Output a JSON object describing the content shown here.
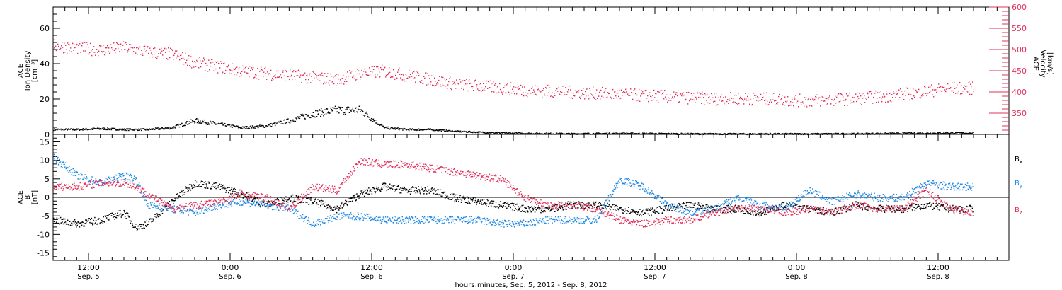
{
  "chart_data": [
    {
      "type": "scatter",
      "panel": "top",
      "ylabel_left": [
        "ACE",
        "Ion Density",
        "[cm⁻³]"
      ],
      "ylabel_right": [
        "ACE",
        "Velocity",
        "[km/s]"
      ],
      "ylim_left": [
        0,
        72
      ],
      "yticks_left": [
        0,
        20,
        40,
        60
      ],
      "ylim_right": [
        300,
        600
      ],
      "yticks_right": [
        350,
        400,
        450,
        500,
        550,
        600
      ],
      "xlim_hours": [
        0,
        81
      ],
      "grid": false,
      "series": [
        {
          "axis": "left",
          "color": "#000000",
          "x": [
            0,
            2,
            4,
            6,
            8,
            10,
            12,
            14,
            16,
            18,
            20,
            22,
            24,
            26,
            28,
            30,
            32,
            34,
            36,
            38,
            40,
            44,
            48,
            52,
            56,
            60,
            64,
            68,
            72,
            76,
            78
          ],
          "values": [
            3,
            3,
            3.5,
            3,
            3,
            4,
            8,
            6,
            4,
            5,
            8,
            12,
            14,
            14,
            4,
            3,
            3,
            2,
            1.5,
            1,
            0.8,
            0.6,
            0.8,
            0.6,
            0.5,
            0.5,
            0.5,
            0.6,
            0.8,
            1,
            1
          ]
        },
        {
          "axis": "right",
          "color": "#e0305a",
          "x": [
            0,
            2,
            4,
            6,
            8,
            10,
            12,
            14,
            16,
            18,
            20,
            22,
            24,
            26,
            28,
            30,
            32,
            34,
            36,
            38,
            40,
            44,
            48,
            52,
            56,
            60,
            64,
            68,
            72,
            76,
            78
          ],
          "values": [
            510,
            505,
            500,
            505,
            495,
            490,
            470,
            460,
            450,
            445,
            440,
            435,
            430,
            445,
            450,
            440,
            430,
            420,
            415,
            410,
            405,
            400,
            395,
            390,
            385,
            385,
            380,
            385,
            395,
            410,
            410
          ]
        }
      ]
    },
    {
      "type": "scatter",
      "panel": "bottom",
      "ylabel": [
        "ACE",
        "B",
        "[nT]"
      ],
      "ylim": [
        -17,
        17
      ],
      "yticks": [
        -15,
        -10,
        -5,
        0,
        5,
        10,
        15
      ],
      "zero_line": true,
      "xlim_hours": [
        0,
        81
      ],
      "xtick_hours": [
        3,
        15,
        27,
        39,
        51,
        63,
        75
      ],
      "xtick_labels": [
        "12:00",
        "0:00",
        "12:00",
        "0:00",
        "12:00",
        "0:00",
        "12:00"
      ],
      "xtick_sublabels": [
        "Sep. 5",
        "Sep. 6",
        "Sep. 6",
        "Sep. 7",
        "Sep. 7",
        "Sep. 8",
        "Sep. 8"
      ],
      "xlabel": "hours:minutes, Sep.  5, 2012 - Sep.  8, 2012",
      "grid": false,
      "series": [
        {
          "name": "Bx",
          "color": "#000000",
          "x": [
            0,
            2,
            4,
            6,
            7,
            8,
            10,
            12,
            14,
            16,
            18,
            20,
            22,
            24,
            26,
            28,
            30,
            32,
            34,
            36,
            38,
            40,
            42,
            44,
            46,
            48,
            50,
            52,
            54,
            56,
            58,
            60,
            62,
            64,
            66,
            68,
            70,
            72,
            74,
            76,
            78
          ],
          "values": [
            -6,
            -7,
            -6,
            -4,
            -8,
            -7,
            -1,
            4,
            3,
            1,
            -2,
            0,
            -1,
            -3,
            1,
            3,
            2,
            2,
            0,
            -1,
            -2,
            -3,
            -3,
            -2,
            -2,
            -3,
            -4,
            -3,
            -2,
            -3,
            -3,
            -4,
            -2,
            -3,
            -4,
            -2,
            -3,
            -3,
            -2,
            -3,
            -3
          ]
        },
        {
          "name": "By",
          "color": "#1e88e5",
          "x": [
            0,
            2,
            4,
            6,
            7,
            8,
            10,
            12,
            14,
            16,
            18,
            20,
            22,
            24,
            26,
            28,
            30,
            32,
            34,
            36,
            38,
            40,
            42,
            44,
            46,
            48,
            50,
            52,
            54,
            56,
            58,
            60,
            62,
            64,
            66,
            68,
            70,
            72,
            74,
            76,
            78
          ],
          "values": [
            11,
            6,
            4,
            6,
            5,
            -2,
            -3,
            -4,
            -2,
            -1,
            -2,
            -3,
            -7,
            -5,
            -5,
            -6,
            -6,
            -6,
            -6,
            -6,
            -7,
            -7,
            -6,
            -6,
            -6,
            5,
            3,
            -2,
            -4,
            -3,
            0,
            -2,
            -3,
            2,
            -1,
            1,
            0,
            0,
            4,
            3,
            3
          ]
        },
        {
          "name": "Bz",
          "color": "#e0305a",
          "x": [
            0,
            2,
            4,
            6,
            7,
            8,
            10,
            12,
            14,
            16,
            18,
            20,
            22,
            24,
            26,
            28,
            30,
            32,
            34,
            36,
            38,
            40,
            42,
            44,
            46,
            48,
            50,
            52,
            54,
            56,
            58,
            60,
            62,
            64,
            66,
            68,
            70,
            72,
            74,
            76,
            78
          ],
          "values": [
            3,
            3,
            4,
            4,
            3,
            1,
            -3,
            -2,
            -1,
            1,
            0,
            -3,
            3,
            2,
            10,
            9,
            9,
            8,
            7,
            6,
            5,
            0,
            -2,
            -2,
            -3,
            -6,
            -7,
            -6,
            -6,
            -4,
            -3,
            -3,
            -4,
            -3,
            -4,
            -2,
            -3,
            -3,
            2,
            -3,
            -4
          ]
        }
      ]
    }
  ],
  "legend": [
    {
      "label": "B",
      "sub": "x",
      "color": "#000000"
    },
    {
      "label": "B",
      "sub": "y",
      "color": "#1e88e5"
    },
    {
      "label": "B",
      "sub": "z",
      "color": "#e0305a"
    }
  ]
}
